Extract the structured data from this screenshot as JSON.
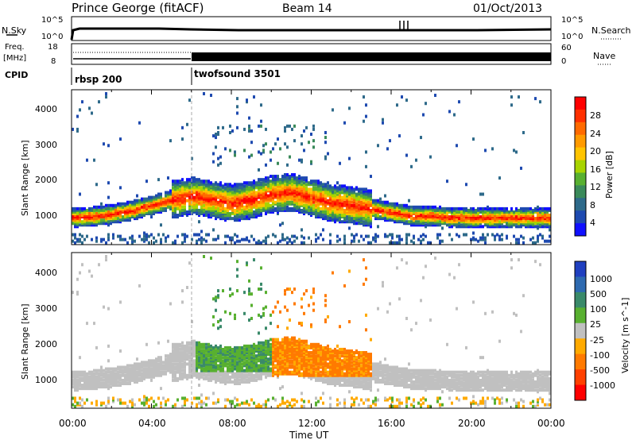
{
  "header": {
    "title": "Prince George (fitACF)",
    "beam": "Beam 14",
    "date": "01/Oct/2013"
  },
  "panels": {
    "nsky": {
      "label": "N.Sky",
      "right_label": "N.Search",
      "ticks_left": [
        "10^5",
        "10^0"
      ],
      "ticks_right": [
        "10^5",
        "10^0"
      ]
    },
    "freq": {
      "label_top": "Freq.",
      "label_bottom": "[MHz]",
      "right_label": "Nave",
      "ticks_left": [
        "18",
        "8"
      ],
      "ticks_right": [
        "60",
        "0"
      ]
    },
    "cpid": {
      "label": "CPID",
      "segments": [
        {
          "name": "rbsp 200",
          "start_hour": 0
        },
        {
          "name": "twofsound 3501",
          "start_hour": 6
        }
      ]
    }
  },
  "colorbars": {
    "power": {
      "label": "Power [dB]",
      "ticks": [
        "28",
        "24",
        "20",
        "16",
        "12",
        "8",
        "4"
      ],
      "colors": [
        "#ff0000",
        "#ff3000",
        "#ff6a00",
        "#ff9a00",
        "#ffc400",
        "#a8d400",
        "#58b030",
        "#3a8a5a",
        "#2e6a8a",
        "#1e4ab0",
        "#1010ff"
      ]
    },
    "velocity": {
      "label": "Velocity [m s^-1]",
      "ticks": [
        "1000",
        "500",
        "100",
        "25",
        "-25",
        "-100",
        "-500",
        "-1000"
      ],
      "colors": [
        "#2040c0",
        "#2e6ab0",
        "#3a8a6a",
        "#58b030",
        "#c0c0c0",
        "#ffaa00",
        "#ff7a00",
        "#ff4000",
        "#ff0000"
      ]
    }
  },
  "chart_data": [
    {
      "type": "heatmap",
      "name": "power",
      "ylabel": "Slant Range [km]",
      "xlabel": "",
      "ylim": [
        200,
        4500
      ],
      "xlim": [
        0,
        24
      ],
      "yticks": [
        "4000",
        "3000",
        "2000",
        "1000"
      ],
      "xticks": [
        "00:00",
        "04:00",
        "08:00",
        "12:00",
        "16:00",
        "20:00",
        "00:00"
      ],
      "echo_band_center_km": [
        950,
        980,
        1050,
        1150,
        1300,
        1450,
        1550,
        1450,
        1350,
        1450,
        1600,
        1650,
        1500,
        1350,
        1300,
        1200,
        1100,
        1000,
        1000,
        950,
        950,
        950,
        950,
        950,
        950
      ]
    },
    {
      "type": "heatmap",
      "name": "velocity",
      "ylabel": "Slant Range [km]",
      "xlabel": "Time UT",
      "ylim": [
        200,
        4500
      ],
      "xlim": [
        0,
        24
      ],
      "yticks": [
        "4000",
        "3000",
        "2000",
        "1000"
      ],
      "xticks": [
        "00:00",
        "04:00",
        "08:00",
        "12:00",
        "16:00",
        "20:00",
        "00:00"
      ]
    }
  ]
}
